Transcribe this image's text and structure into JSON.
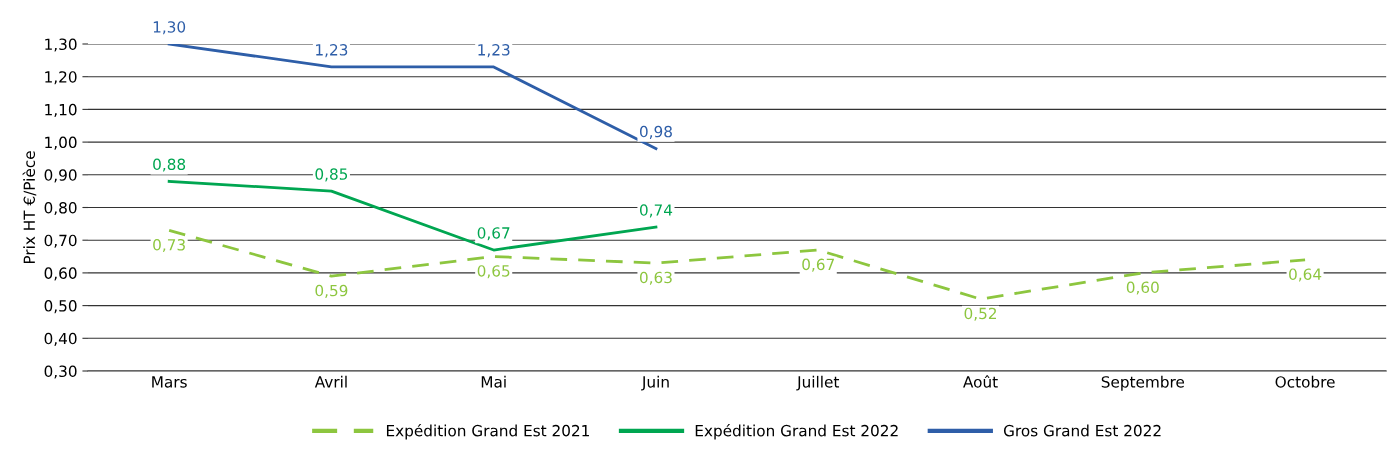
{
  "chart_data": {
    "type": "line",
    "ylabel": "Prix HT €/Pièce",
    "categories": [
      "Mars",
      "Avril",
      "Mai",
      "Juin",
      "Juillet",
      "Août",
      "Septembre",
      "Octobre"
    ],
    "ylim": [
      0.3,
      1.3
    ],
    "yticks": [
      {
        "value": 0.3,
        "label": "0,30"
      },
      {
        "value": 0.4,
        "label": "0,40"
      },
      {
        "value": 0.5,
        "label": "0,50"
      },
      {
        "value": 0.6,
        "label": "0,60"
      },
      {
        "value": 0.7,
        "label": "0,70"
      },
      {
        "value": 0.8,
        "label": "0,80"
      },
      {
        "value": 0.9,
        "label": "0,90"
      },
      {
        "value": 1.0,
        "label": "1,00"
      },
      {
        "value": 1.1,
        "label": "1,10"
      },
      {
        "value": 1.2,
        "label": "1,20"
      },
      {
        "value": 1.3,
        "label": "1,30"
      }
    ],
    "grid": "y",
    "legend": "bottom",
    "marker": "none",
    "series": [
      {
        "name": "Expédition Grand Est 2021",
        "color": "#8dc63f",
        "line_style": "dashed",
        "values": [
          0.73,
          0.59,
          0.65,
          0.63,
          0.67,
          0.52,
          0.6,
          0.64
        ],
        "value_labels": [
          "0,73",
          "0,59",
          "0,65",
          "0,63",
          "0,67",
          "0,52",
          "0,60",
          "0,64"
        ]
      },
      {
        "name": "Expédition Grand Est 2022",
        "color": "#00a651",
        "line_style": "solid",
        "values": [
          0.88,
          0.85,
          0.67,
          0.74,
          null,
          null,
          null,
          null
        ],
        "value_labels": [
          "0,88",
          "0,85",
          "0,67",
          "0,74",
          null,
          null,
          null,
          null
        ]
      },
      {
        "name": "Gros Grand Est 2022",
        "color": "#2e5ea8",
        "line_style": "solid",
        "values": [
          1.3,
          1.23,
          1.23,
          0.98,
          null,
          null,
          null,
          null
        ],
        "value_labels": [
          "1,30",
          "1,23",
          "1,23",
          "0,98",
          null,
          null,
          null,
          null
        ]
      }
    ]
  }
}
